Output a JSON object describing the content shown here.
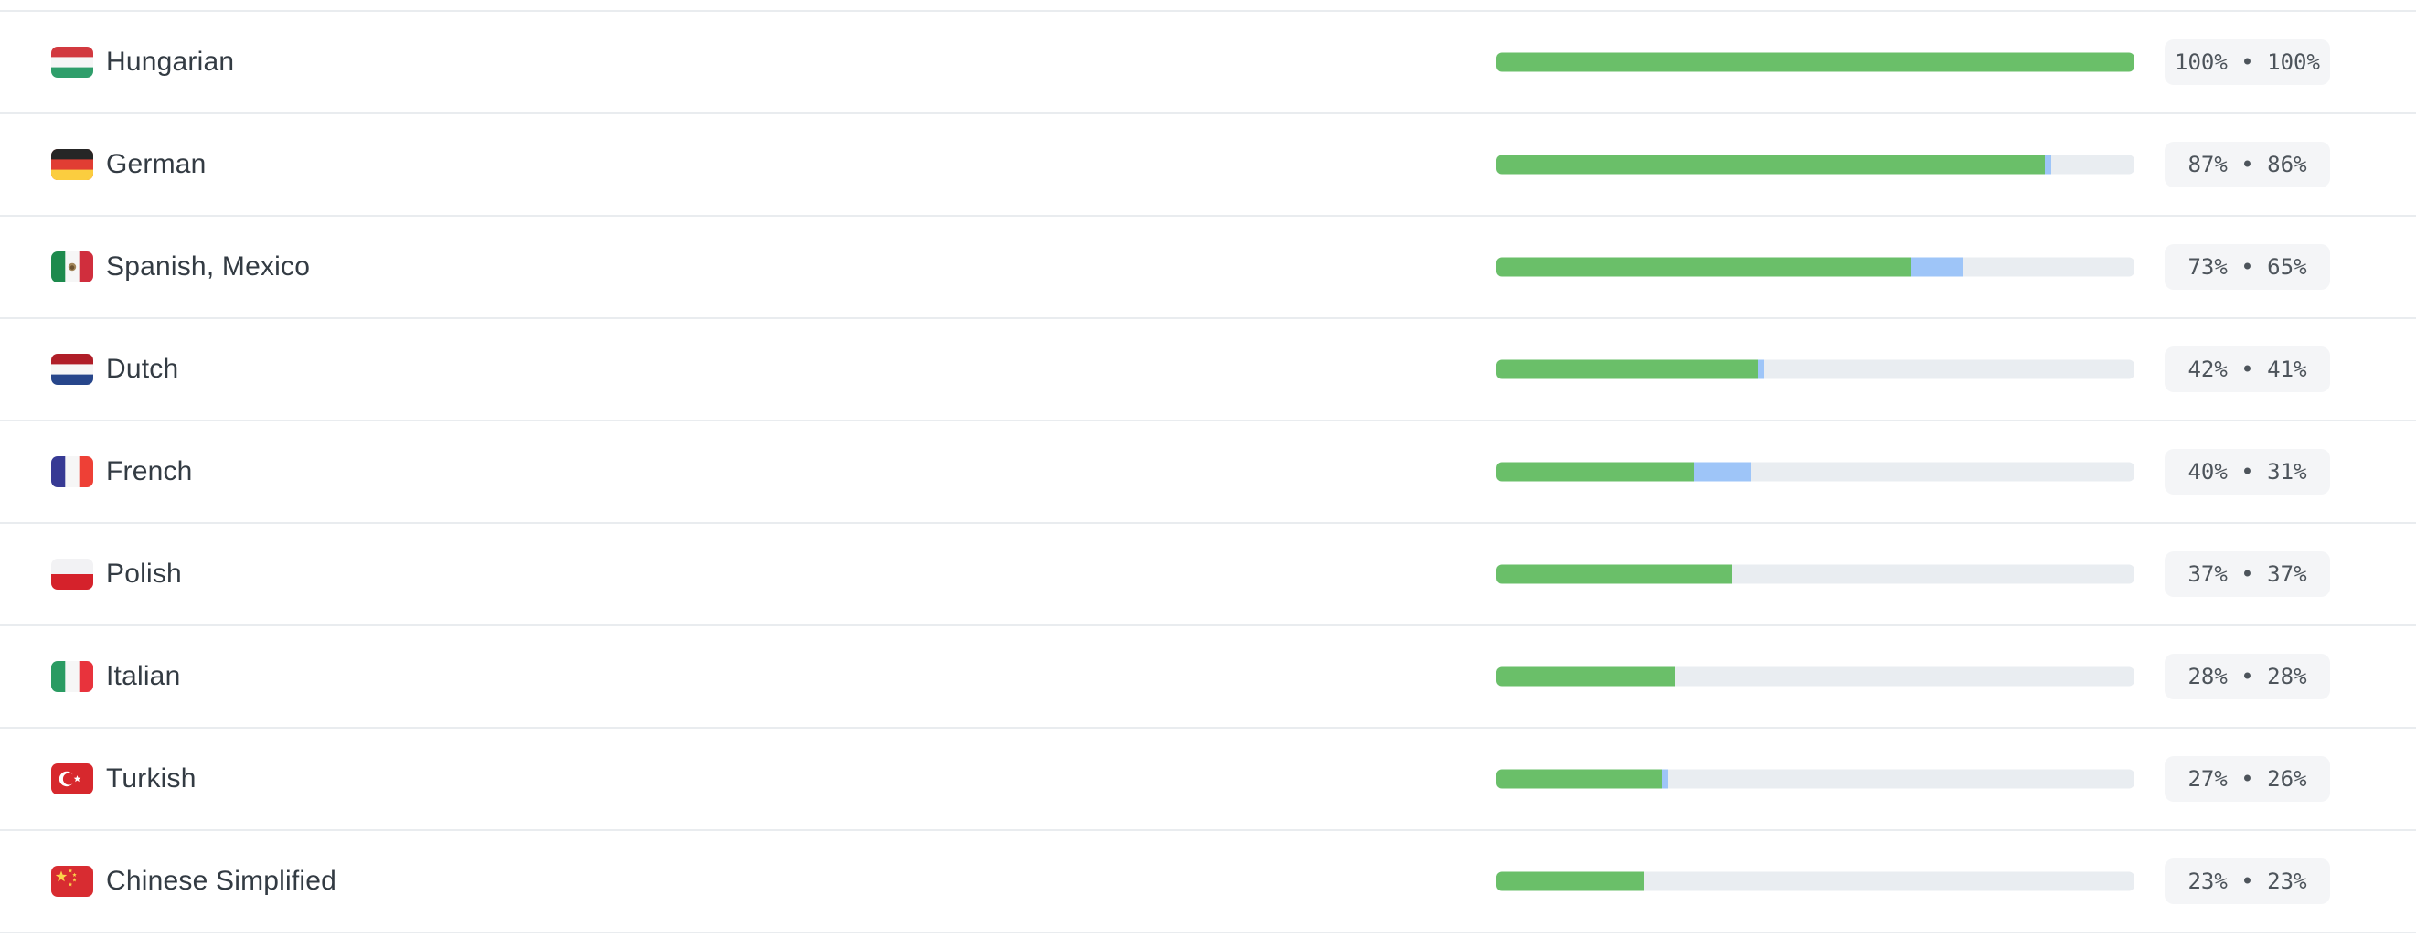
{
  "colors": {
    "approved_green": "#6abf69",
    "translated_blue": "#9ec5f8",
    "track_gray": "#e9edf1",
    "divider": "#e9ecef",
    "badge_bg": "#f4f5f7",
    "badge_text": "#4d545b",
    "label_text": "#333b43"
  },
  "languages": [
    {
      "name": "Hungarian",
      "flag": "hungary",
      "translated_pct": 100,
      "approved_pct": 100,
      "badge": "100% • 100%"
    },
    {
      "name": "German",
      "flag": "germany",
      "translated_pct": 87,
      "approved_pct": 86,
      "badge": "87% • 86%"
    },
    {
      "name": "Spanish, Mexico",
      "flag": "mexico",
      "translated_pct": 73,
      "approved_pct": 65,
      "badge": "73% • 65%"
    },
    {
      "name": "Dutch",
      "flag": "netherlands",
      "translated_pct": 42,
      "approved_pct": 41,
      "badge": "42% • 41%"
    },
    {
      "name": "French",
      "flag": "france",
      "translated_pct": 40,
      "approved_pct": 31,
      "badge": "40% • 31%"
    },
    {
      "name": "Polish",
      "flag": "poland",
      "translated_pct": 37,
      "approved_pct": 37,
      "badge": "37% • 37%"
    },
    {
      "name": "Italian",
      "flag": "italy",
      "translated_pct": 28,
      "approved_pct": 28,
      "badge": "28% • 28%"
    },
    {
      "name": "Turkish",
      "flag": "turkey",
      "translated_pct": 27,
      "approved_pct": 26,
      "badge": "27% • 26%"
    },
    {
      "name": "Chinese Simplified",
      "flag": "china",
      "translated_pct": 23,
      "approved_pct": 23,
      "badge": "23% • 23%"
    }
  ]
}
